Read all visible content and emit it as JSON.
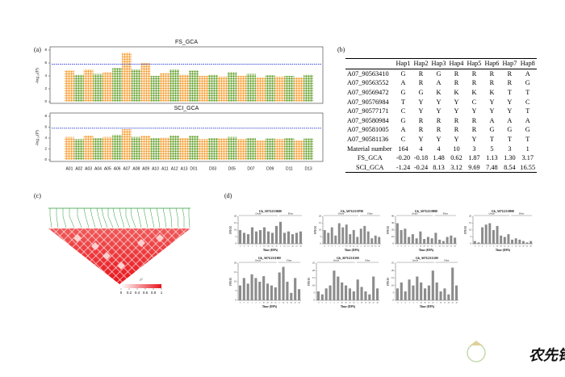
{
  "panel_labels": [
    "(a)",
    "(b)",
    "(c)",
    "(d)"
  ],
  "manhattan": {
    "ylabel": "-log₁₀(P)",
    "ylim": [
      0,
      8
    ],
    "yticks": [
      0,
      2,
      4,
      6,
      8
    ],
    "threshold": 5.8,
    "colors": [
      "#f7941d",
      "#5b9b1f"
    ],
    "threshold_color": "#2b3bd1",
    "chromosomes": [
      "A01",
      "A02",
      "A03",
      "A04",
      "A05",
      "A06",
      "A07",
      "A08",
      "A09",
      "A10",
      "A11",
      "A12",
      "A13",
      "D01",
      null,
      "D03",
      null,
      "D05",
      null,
      "D07",
      null,
      "D09",
      null,
      "D11",
      null,
      "D13"
    ],
    "panels": [
      {
        "title": "FS_GCA",
        "peaks": [
          4.8,
          4.2,
          5.0,
          4.3,
          4.6,
          5.2,
          7.6,
          5.0,
          6.0,
          4.0,
          4.4,
          5.0,
          4.2,
          4.8,
          4.0,
          4.2,
          3.9,
          4.6,
          4.0,
          4.3,
          3.8,
          4.1,
          3.9,
          4.0,
          3.8,
          4.2
        ]
      },
      {
        "title": "SCI_GCA",
        "peaks": [
          4.2,
          3.8,
          4.5,
          4.0,
          4.2,
          4.6,
          5.6,
          4.2,
          4.4,
          4.0,
          4.1,
          4.5,
          4.0,
          4.4,
          3.8,
          4.0,
          3.9,
          4.2,
          3.8,
          4.0,
          3.6,
          3.9,
          3.8,
          4.0,
          3.6,
          3.9
        ]
      }
    ]
  },
  "haplotype_table": {
    "columns": [
      "Hap1",
      "Hap2",
      "Hap3",
      "Hap4",
      "Hap5",
      "Hap6",
      "Hap7",
      "Hap8"
    ],
    "rows": [
      {
        "label": "A07_90563410",
        "cells": [
          "G",
          "R",
          "G",
          "R",
          "R",
          "R",
          "R",
          "A"
        ]
      },
      {
        "label": "A07_90563552",
        "cells": [
          "A",
          "R",
          "A",
          "R",
          "R",
          "R",
          "R",
          "G"
        ]
      },
      {
        "label": "A07_90569472",
        "cells": [
          "G",
          "G",
          "K",
          "K",
          "K",
          "K",
          "T",
          "T"
        ]
      },
      {
        "label": "A07_90576984",
        "cells": [
          "T",
          "Y",
          "Y",
          "Y",
          "C",
          "Y",
          "Y",
          "C"
        ]
      },
      {
        "label": "A07_90577171",
        "cells": [
          "C",
          "Y",
          "Y",
          "Y",
          "Y",
          "Y",
          "Y",
          "T"
        ]
      },
      {
        "label": "A07_90580984",
        "cells": [
          "G",
          "R",
          "R",
          "R",
          "R",
          "A",
          "A",
          "A"
        ]
      },
      {
        "label": "A07_90581005",
        "cells": [
          "A",
          "R",
          "R",
          "R",
          "R",
          "G",
          "G",
          "G"
        ]
      },
      {
        "label": "A07_90581136",
        "cells": [
          "C",
          "Y",
          "Y",
          "Y",
          "Y",
          "T",
          "T",
          "T"
        ]
      },
      {
        "label": "Material number",
        "cells": [
          "164",
          "4",
          "4",
          "10",
          "3",
          "5",
          "3",
          "1"
        ]
      },
      {
        "label": "FS_GCA",
        "cells": [
          "-0.20",
          "-0.18",
          "1.48",
          "0.62",
          "1.87",
          "1.13",
          "1.30",
          "3.17"
        ]
      },
      {
        "label": "SCI_GCA",
        "cells": [
          "-1.24",
          "-0.24",
          "8.13",
          "3.12",
          "9.69",
          "7.48",
          "8.54",
          "16.55"
        ]
      }
    ]
  },
  "ld": {
    "legend_title": "r²",
    "legend_ticks": [
      0,
      0.2,
      0.4,
      0.6,
      0.8,
      1
    ]
  },
  "expression": {
    "ylabel": "FPKM",
    "xlabel": "Time (DPA)",
    "ovule": "Ovule",
    "fiber": "Fiber",
    "categories": [
      "-3",
      "-1",
      "0",
      "1",
      "3",
      "5",
      "10",
      "20",
      "25",
      "35",
      "5",
      "10",
      "15",
      "20",
      "25",
      "30"
    ],
    "charts": [
      {
        "title": "Gh_A07G2310600",
        "ylim": [
          0,
          20
        ],
        "yticks": [
          0,
          5,
          10,
          15,
          20
        ],
        "values": [
          10,
          8,
          7,
          12,
          9,
          10,
          12,
          9,
          8,
          13,
          16,
          8,
          9,
          7,
          8,
          9
        ]
      },
      {
        "title": "Gh_A07G2310700",
        "ylim": [
          0,
          20
        ],
        "yticks": [
          0,
          5,
          10,
          15,
          20
        ],
        "values": [
          10,
          8,
          12,
          6,
          15,
          12,
          14,
          7,
          10,
          5,
          11,
          13,
          9,
          4,
          6,
          5
        ]
      },
      {
        "title": "Gh_A07G2310800",
        "ylim": [
          0,
          40
        ],
        "yticks": [
          0,
          10,
          20,
          30,
          40
        ],
        "values": [
          30,
          20,
          22,
          10,
          14,
          8,
          18,
          7,
          10,
          8,
          16,
          6,
          4,
          10,
          12,
          9
        ]
      },
      {
        "title": "Gh_A07G2310900",
        "ylim": [
          0,
          20
        ],
        "yticks": [
          0,
          5,
          10,
          15,
          20
        ],
        "values": [
          2,
          1,
          12,
          14,
          15,
          10,
          13,
          6,
          5,
          7,
          3,
          4,
          3,
          2,
          1,
          2
        ]
      },
      {
        "title": "Gh_A07G2311000",
        "ylim": [
          0,
          20
        ],
        "yticks": [
          0,
          5,
          10,
          15,
          20
        ],
        "values": [
          8,
          12,
          9,
          14,
          12,
          10,
          13,
          9,
          8,
          7,
          15,
          18,
          10,
          4,
          12,
          6
        ]
      },
      {
        "title": "Gh_A07G2311100",
        "ylim": [
          0,
          25
        ],
        "yticks": [
          0,
          5,
          10,
          15,
          20,
          25
        ],
        "values": [
          6,
          4,
          8,
          10,
          20,
          16,
          12,
          10,
          8,
          6,
          14,
          9,
          6,
          4,
          16,
          8
        ]
      },
      {
        "title": "Gh_A07G2311200",
        "ylim": [
          0,
          25
        ],
        "yticks": [
          0,
          5,
          10,
          15,
          20,
          25
        ],
        "values": [
          8,
          12,
          6,
          14,
          10,
          16,
          12,
          8,
          10,
          20,
          12,
          6,
          8,
          4,
          22,
          10
        ]
      }
    ]
  },
  "watermark": "农先锋"
}
